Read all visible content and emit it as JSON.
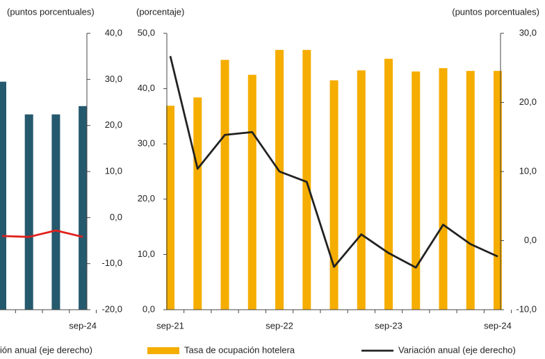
{
  "chart_data": [
    {
      "type": "bar_line",
      "axis_label": "(puntos porcentuales)",
      "categories": [
        null,
        null,
        null,
        "sep-24"
      ],
      "ylim": [
        -20,
        40
      ],
      "yticks": [
        {
          "value": 40,
          "label": "40,0"
        },
        {
          "value": 30,
          "label": "30,0"
        },
        {
          "value": 20,
          "label": "20,0"
        },
        {
          "value": 10,
          "label": "10,0"
        },
        {
          "value": 0,
          "label": "0,0"
        },
        {
          "value": -10,
          "label": "-10,0"
        },
        {
          "value": -20,
          "label": "-20,0"
        }
      ],
      "series": [
        {
          "kind": "bar",
          "color": "#25596e",
          "values": [
            29.5,
            22.4,
            22.4,
            24.2
          ]
        },
        {
          "kind": "line",
          "name": "ión anual (eje derecho)",
          "color": "#e0201b",
          "values": [
            -4.0,
            -4.2,
            -2.8,
            -4.2
          ]
        }
      ]
    },
    {
      "type": "bar_line",
      "axis_label": "(porcentaje)",
      "axis2_label": "(puntos porcentuales)",
      "categories": [
        "sep-21",
        null,
        null,
        null,
        "sep-22",
        null,
        null,
        null,
        "sep-23",
        null,
        null,
        null,
        "sep-24"
      ],
      "ylim": [
        0,
        50
      ],
      "yticks": [
        {
          "value": 50,
          "label": "50,0"
        },
        {
          "value": 40,
          "label": "40,0"
        },
        {
          "value": 30,
          "label": "30,0"
        },
        {
          "value": 20,
          "label": "20,0"
        },
        {
          "value": 10,
          "label": "10,0"
        },
        {
          "value": 0,
          "label": "0,0"
        }
      ],
      "y2lim": [
        -10,
        30
      ],
      "y2ticks": [
        {
          "value": 30,
          "label": "30,0"
        },
        {
          "value": 20,
          "label": "20,0"
        },
        {
          "value": 10,
          "label": "10,0"
        },
        {
          "value": 0,
          "label": "0,0"
        },
        {
          "value": -10,
          "label": "-10,0"
        }
      ],
      "series": [
        {
          "kind": "bar",
          "name": "Tasa de ocupación hotelera",
          "color": "#f5ad00",
          "values": [
            36.9,
            38.4,
            45.2,
            42.5,
            47.0,
            47.0,
            41.5,
            43.3,
            45.4,
            43.1,
            43.7,
            43.2,
            43.2
          ]
        },
        {
          "kind": "line",
          "name": "Variación anual (eje derecho)",
          "color": "#222222",
          "axis": "y2",
          "values": [
            26.7,
            10.4,
            15.3,
            15.7,
            10.0,
            8.5,
            -3.8,
            0.9,
            -1.8,
            -3.9,
            2.3,
            -0.5,
            -2.3
          ]
        }
      ]
    }
  ]
}
